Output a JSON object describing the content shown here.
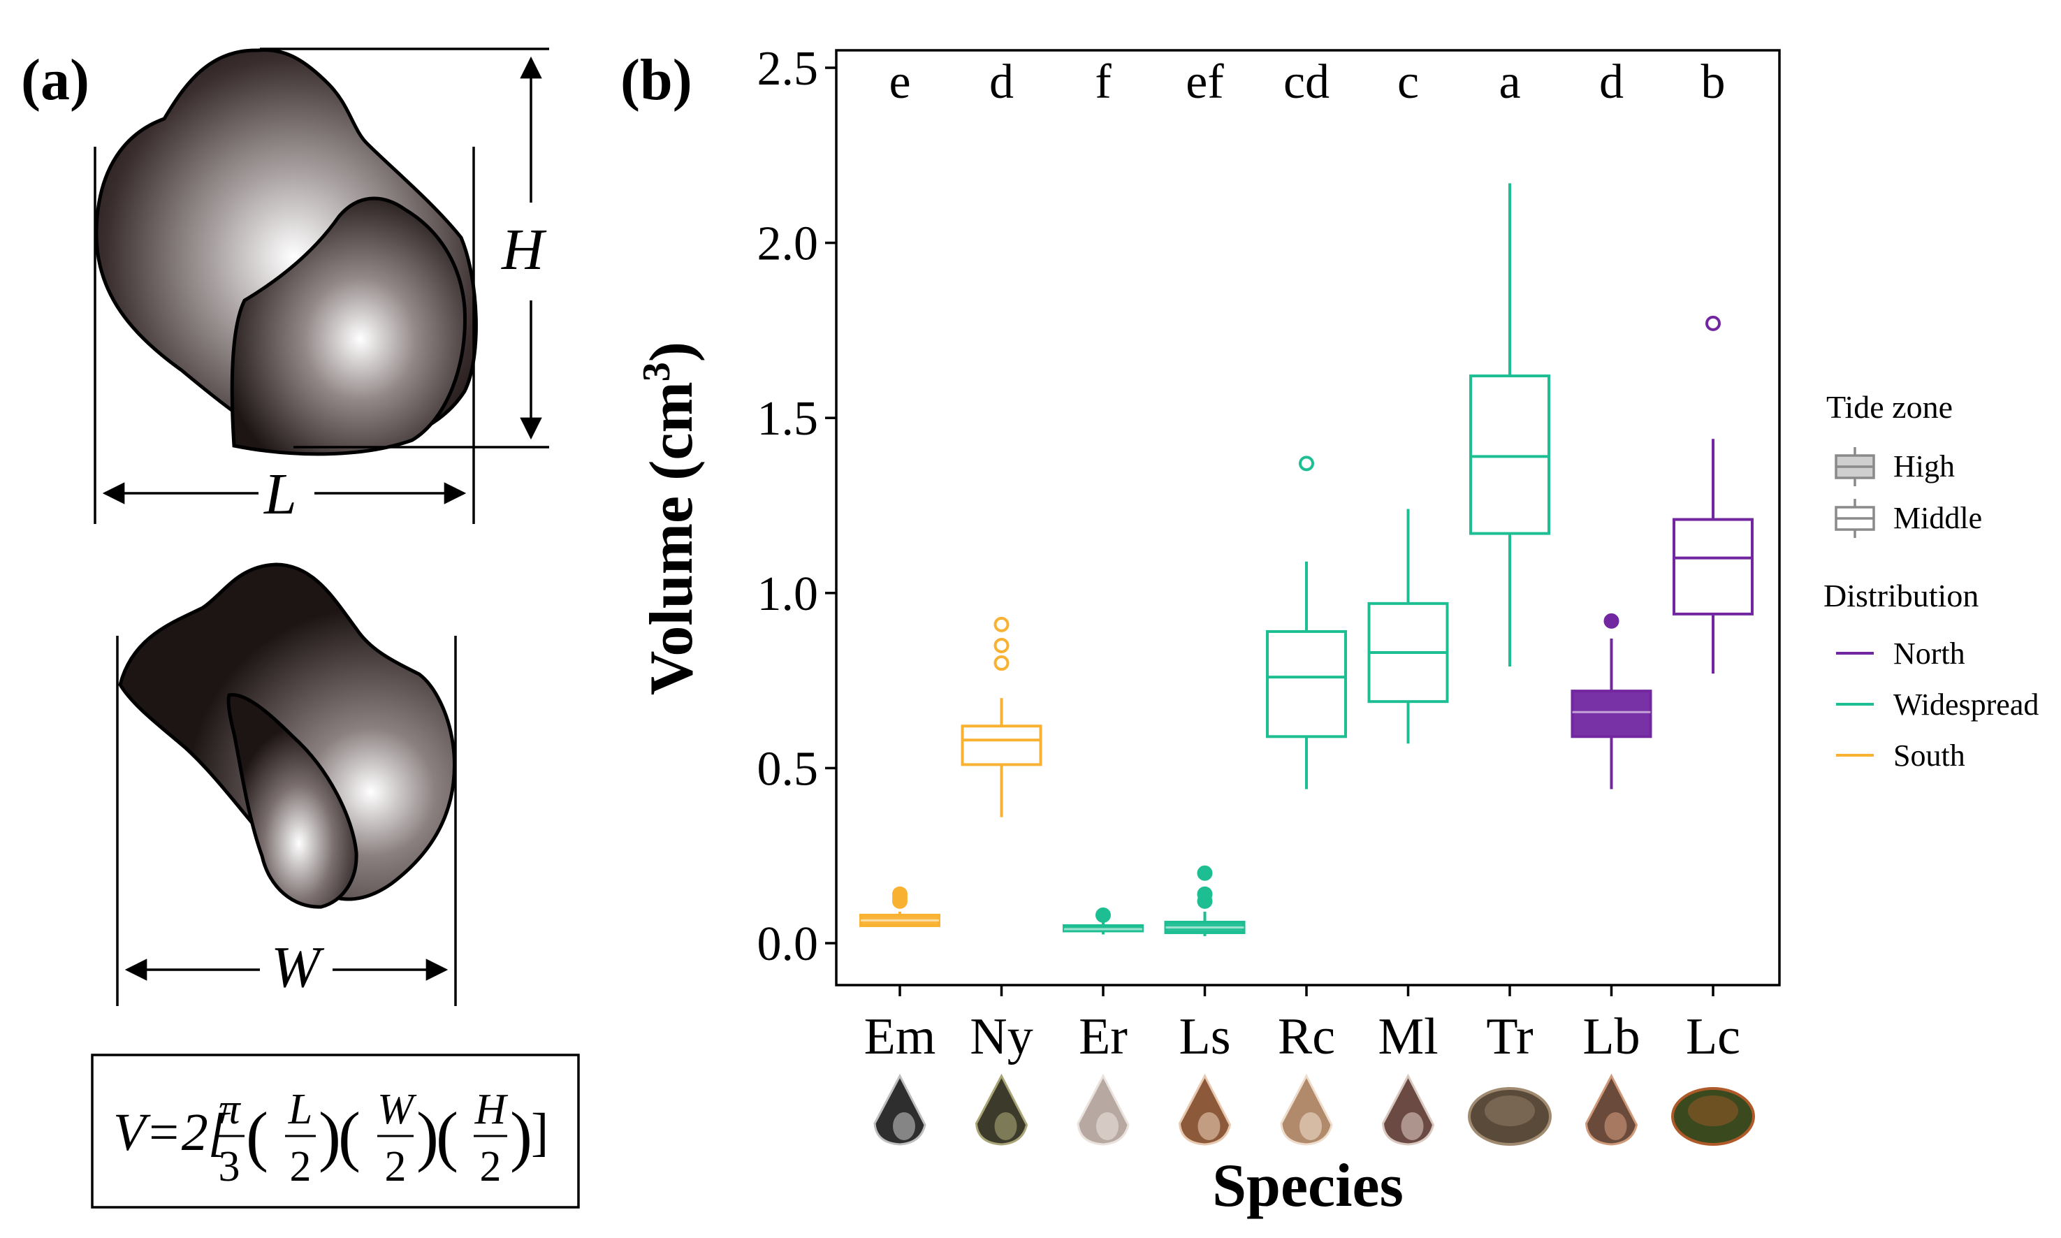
{
  "panel_a": {
    "label": "(a)",
    "dim_h": "H",
    "dim_l": "L",
    "dim_w": "W",
    "formula": {
      "lead": "V=2[",
      "pi": "π",
      "three": "3",
      "l": "L",
      "w": "W",
      "h": "H",
      "two": "2",
      "open": "(",
      "close": ")",
      "end": "]"
    }
  },
  "panel_b": {
    "label": "(b)"
  },
  "colors": {
    "south": "#F9B131",
    "widespread": "#1DBF92",
    "north": "#7227A0",
    "legend_gray": "#8a8a8a",
    "legend_fill": "#cfcfcf"
  },
  "chart_data": {
    "type": "box",
    "title": "",
    "xlabel": "Species",
    "ylabel": "Volume (cm",
    "ylabel_sup": "3",
    "ylabel_close": ")",
    "ylim": [
      0,
      2.5
    ],
    "yticks": [
      0.0,
      0.5,
      1.0,
      1.5,
      2.0,
      2.5
    ],
    "ytick_labels": [
      "0.0",
      "0.5",
      "1.0",
      "1.5",
      "2.0",
      "2.5"
    ],
    "categories": [
      "Em",
      "Ny",
      "Er",
      "Ls",
      "Rc",
      "Ml",
      "Tr",
      "Lb",
      "Lc"
    ],
    "significance_letters": [
      "e",
      "d",
      "f",
      "ef",
      "cd",
      "c",
      "a",
      "d",
      "b"
    ],
    "boxes": [
      {
        "species": "Em",
        "distribution": "South",
        "tide": "High",
        "q1": 0.05,
        "median": 0.065,
        "q3": 0.08,
        "whisker_low": 0.05,
        "whisker_high": 0.09,
        "outliers": [
          0.12,
          0.13,
          0.14
        ]
      },
      {
        "species": "Ny",
        "distribution": "South",
        "tide": "Middle",
        "q1": 0.51,
        "median": 0.58,
        "q3": 0.62,
        "whisker_low": 0.36,
        "whisker_high": 0.7,
        "outliers": [
          0.8,
          0.85,
          0.91
        ]
      },
      {
        "species": "Er",
        "distribution": "Widespread",
        "tide": "High",
        "q1": 0.035,
        "median": 0.04,
        "q3": 0.05,
        "whisker_low": 0.025,
        "whisker_high": 0.06,
        "outliers": [
          0.08
        ]
      },
      {
        "species": "Ls",
        "distribution": "Widespread",
        "tide": "High",
        "q1": 0.03,
        "median": 0.045,
        "q3": 0.06,
        "whisker_low": 0.02,
        "whisker_high": 0.09,
        "outliers": [
          0.12,
          0.14,
          0.2
        ]
      },
      {
        "species": "Rc",
        "distribution": "Widespread",
        "tide": "Middle",
        "q1": 0.59,
        "median": 0.76,
        "q3": 0.89,
        "whisker_low": 0.44,
        "whisker_high": 1.09,
        "outliers": [
          1.37
        ]
      },
      {
        "species": "Ml",
        "distribution": "Widespread",
        "tide": "Middle",
        "q1": 0.69,
        "median": 0.83,
        "q3": 0.97,
        "whisker_low": 0.57,
        "whisker_high": 1.24,
        "outliers": []
      },
      {
        "species": "Tr",
        "distribution": "Widespread",
        "tide": "Middle",
        "q1": 1.17,
        "median": 1.39,
        "q3": 1.62,
        "whisker_low": 0.79,
        "whisker_high": 2.17,
        "outliers": []
      },
      {
        "species": "Lb",
        "distribution": "North",
        "tide": "High",
        "q1": 0.59,
        "median": 0.66,
        "q3": 0.72,
        "whisker_low": 0.44,
        "whisker_high": 0.87,
        "outliers": [
          0.92
        ]
      },
      {
        "species": "Lc",
        "distribution": "North",
        "tide": "Middle",
        "q1": 0.94,
        "median": 1.1,
        "q3": 1.21,
        "whisker_low": 0.77,
        "whisker_high": 1.44,
        "outliers": [
          1.77
        ]
      }
    ],
    "legend": {
      "tide_title": "Tide zone",
      "tide_items": [
        "High",
        "Middle"
      ],
      "dist_title": "Distribution",
      "dist_items": [
        "North",
        "Widespread",
        "South"
      ],
      "position": "right"
    }
  }
}
